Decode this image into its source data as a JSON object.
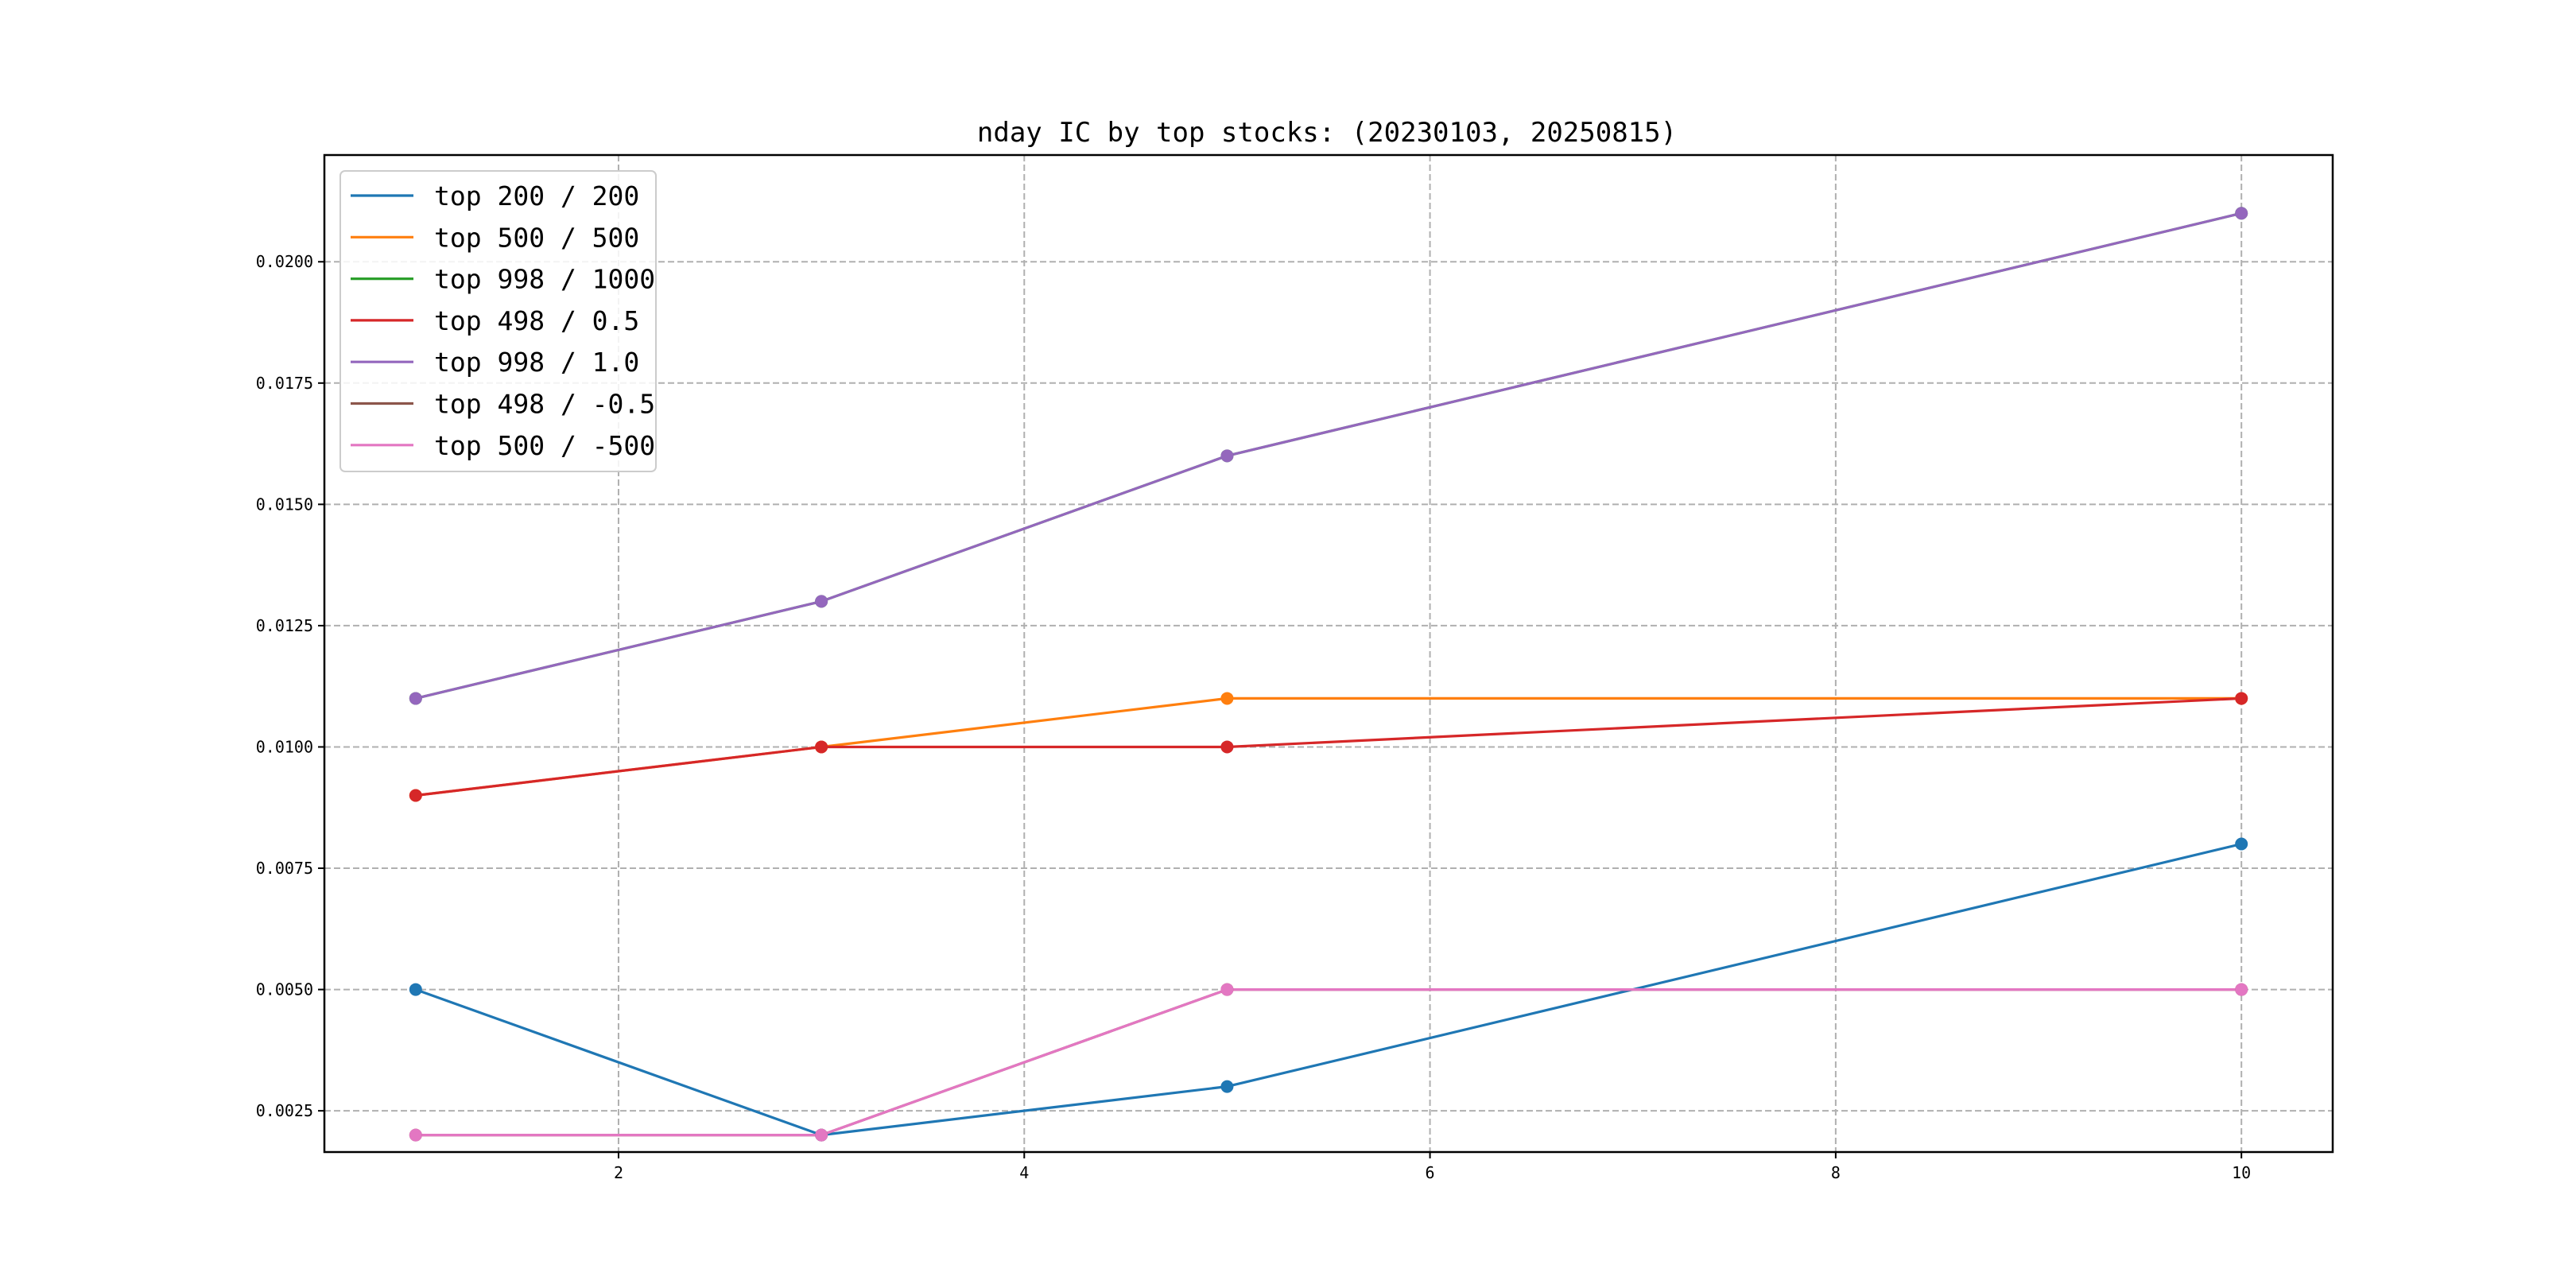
{
  "chart_data": {
    "type": "line",
    "title": "nday IC by top stocks: (20230103, 20250815)",
    "xlabel": "",
    "ylabel": "",
    "x": [
      1,
      3,
      5,
      10
    ],
    "xlim": [
      0.55,
      10.45
    ],
    "ylim": [
      0.00165,
      0.0222
    ],
    "xticks": [
      2,
      4,
      6,
      8,
      10
    ],
    "xtick_labels": [
      "2",
      "4",
      "6",
      "8",
      "10"
    ],
    "yticks": [
      0.0025,
      0.005,
      0.0075,
      0.01,
      0.0125,
      0.015,
      0.0175,
      0.02
    ],
    "ytick_labels": [
      "0.0025",
      "0.0050",
      "0.0075",
      "0.0100",
      "0.0125",
      "0.0150",
      "0.0175",
      "0.0200"
    ],
    "grid": true,
    "grid_style": "dashed",
    "legend_position": "upper-left",
    "markers": true,
    "series": [
      {
        "name": "top 200 / 200",
        "color": "#1f77b4",
        "values": [
          0.005,
          0.002,
          0.003,
          0.008
        ]
      },
      {
        "name": "top 500 / 500",
        "color": "#ff7f0e",
        "values": [
          0.009,
          0.01,
          0.011,
          0.011
        ]
      },
      {
        "name": "top 998 / 1000",
        "color": "#2ca02c",
        "values": [
          0.011,
          0.013,
          0.016,
          0.021
        ]
      },
      {
        "name": "top 498 / 0.5",
        "color": "#d62728",
        "values": [
          0.009,
          0.01,
          0.01,
          0.011
        ]
      },
      {
        "name": "top 998 / 1.0",
        "color": "#9467bd",
        "values": [
          0.011,
          0.013,
          0.016,
          0.021
        ]
      },
      {
        "name": "top 498 / -0.5",
        "color": "#8c564b",
        "values": [
          0.002,
          0.002,
          0.005,
          0.005
        ]
      },
      {
        "name": "top 500 / -500",
        "color": "#e377c2",
        "values": [
          0.002,
          0.002,
          0.005,
          0.005
        ]
      }
    ]
  }
}
